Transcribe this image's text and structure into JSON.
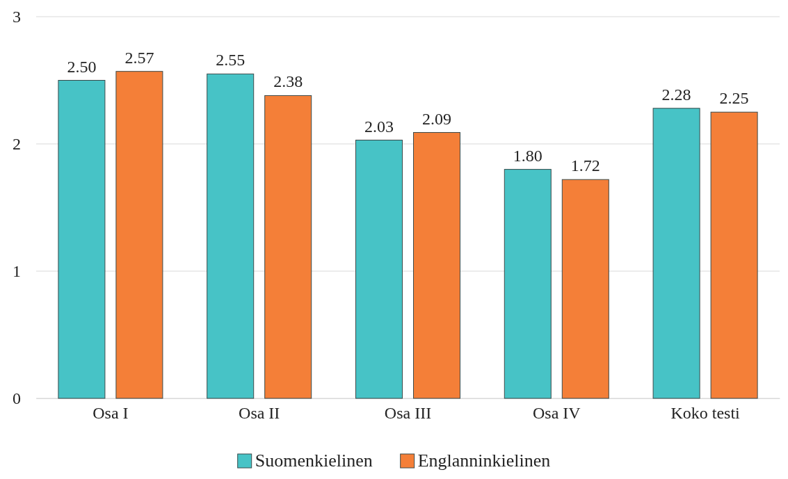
{
  "chart_data": {
    "type": "bar",
    "categories": [
      "Osa I",
      "Osa II",
      "Osa III",
      "Osa IV",
      "Koko testi"
    ],
    "series": [
      {
        "name": "Suomenkielinen",
        "color": "#47c3c6",
        "values": [
          2.5,
          2.55,
          2.03,
          1.8,
          2.28
        ],
        "value_labels": [
          "2.50",
          "2.55",
          "2.03",
          "1.80",
          "2.28"
        ]
      },
      {
        "name": "Englanninkielinen",
        "color": "#f47f38",
        "values": [
          2.57,
          2.38,
          2.09,
          1.72,
          2.25
        ],
        "value_labels": [
          "2.57",
          "2.38",
          "2.09",
          "1.72",
          "2.25"
        ]
      }
    ],
    "ylim": [
      0,
      3
    ],
    "yticks": [
      0,
      1,
      2,
      3
    ],
    "grid": "y",
    "legend": "bottom"
  }
}
